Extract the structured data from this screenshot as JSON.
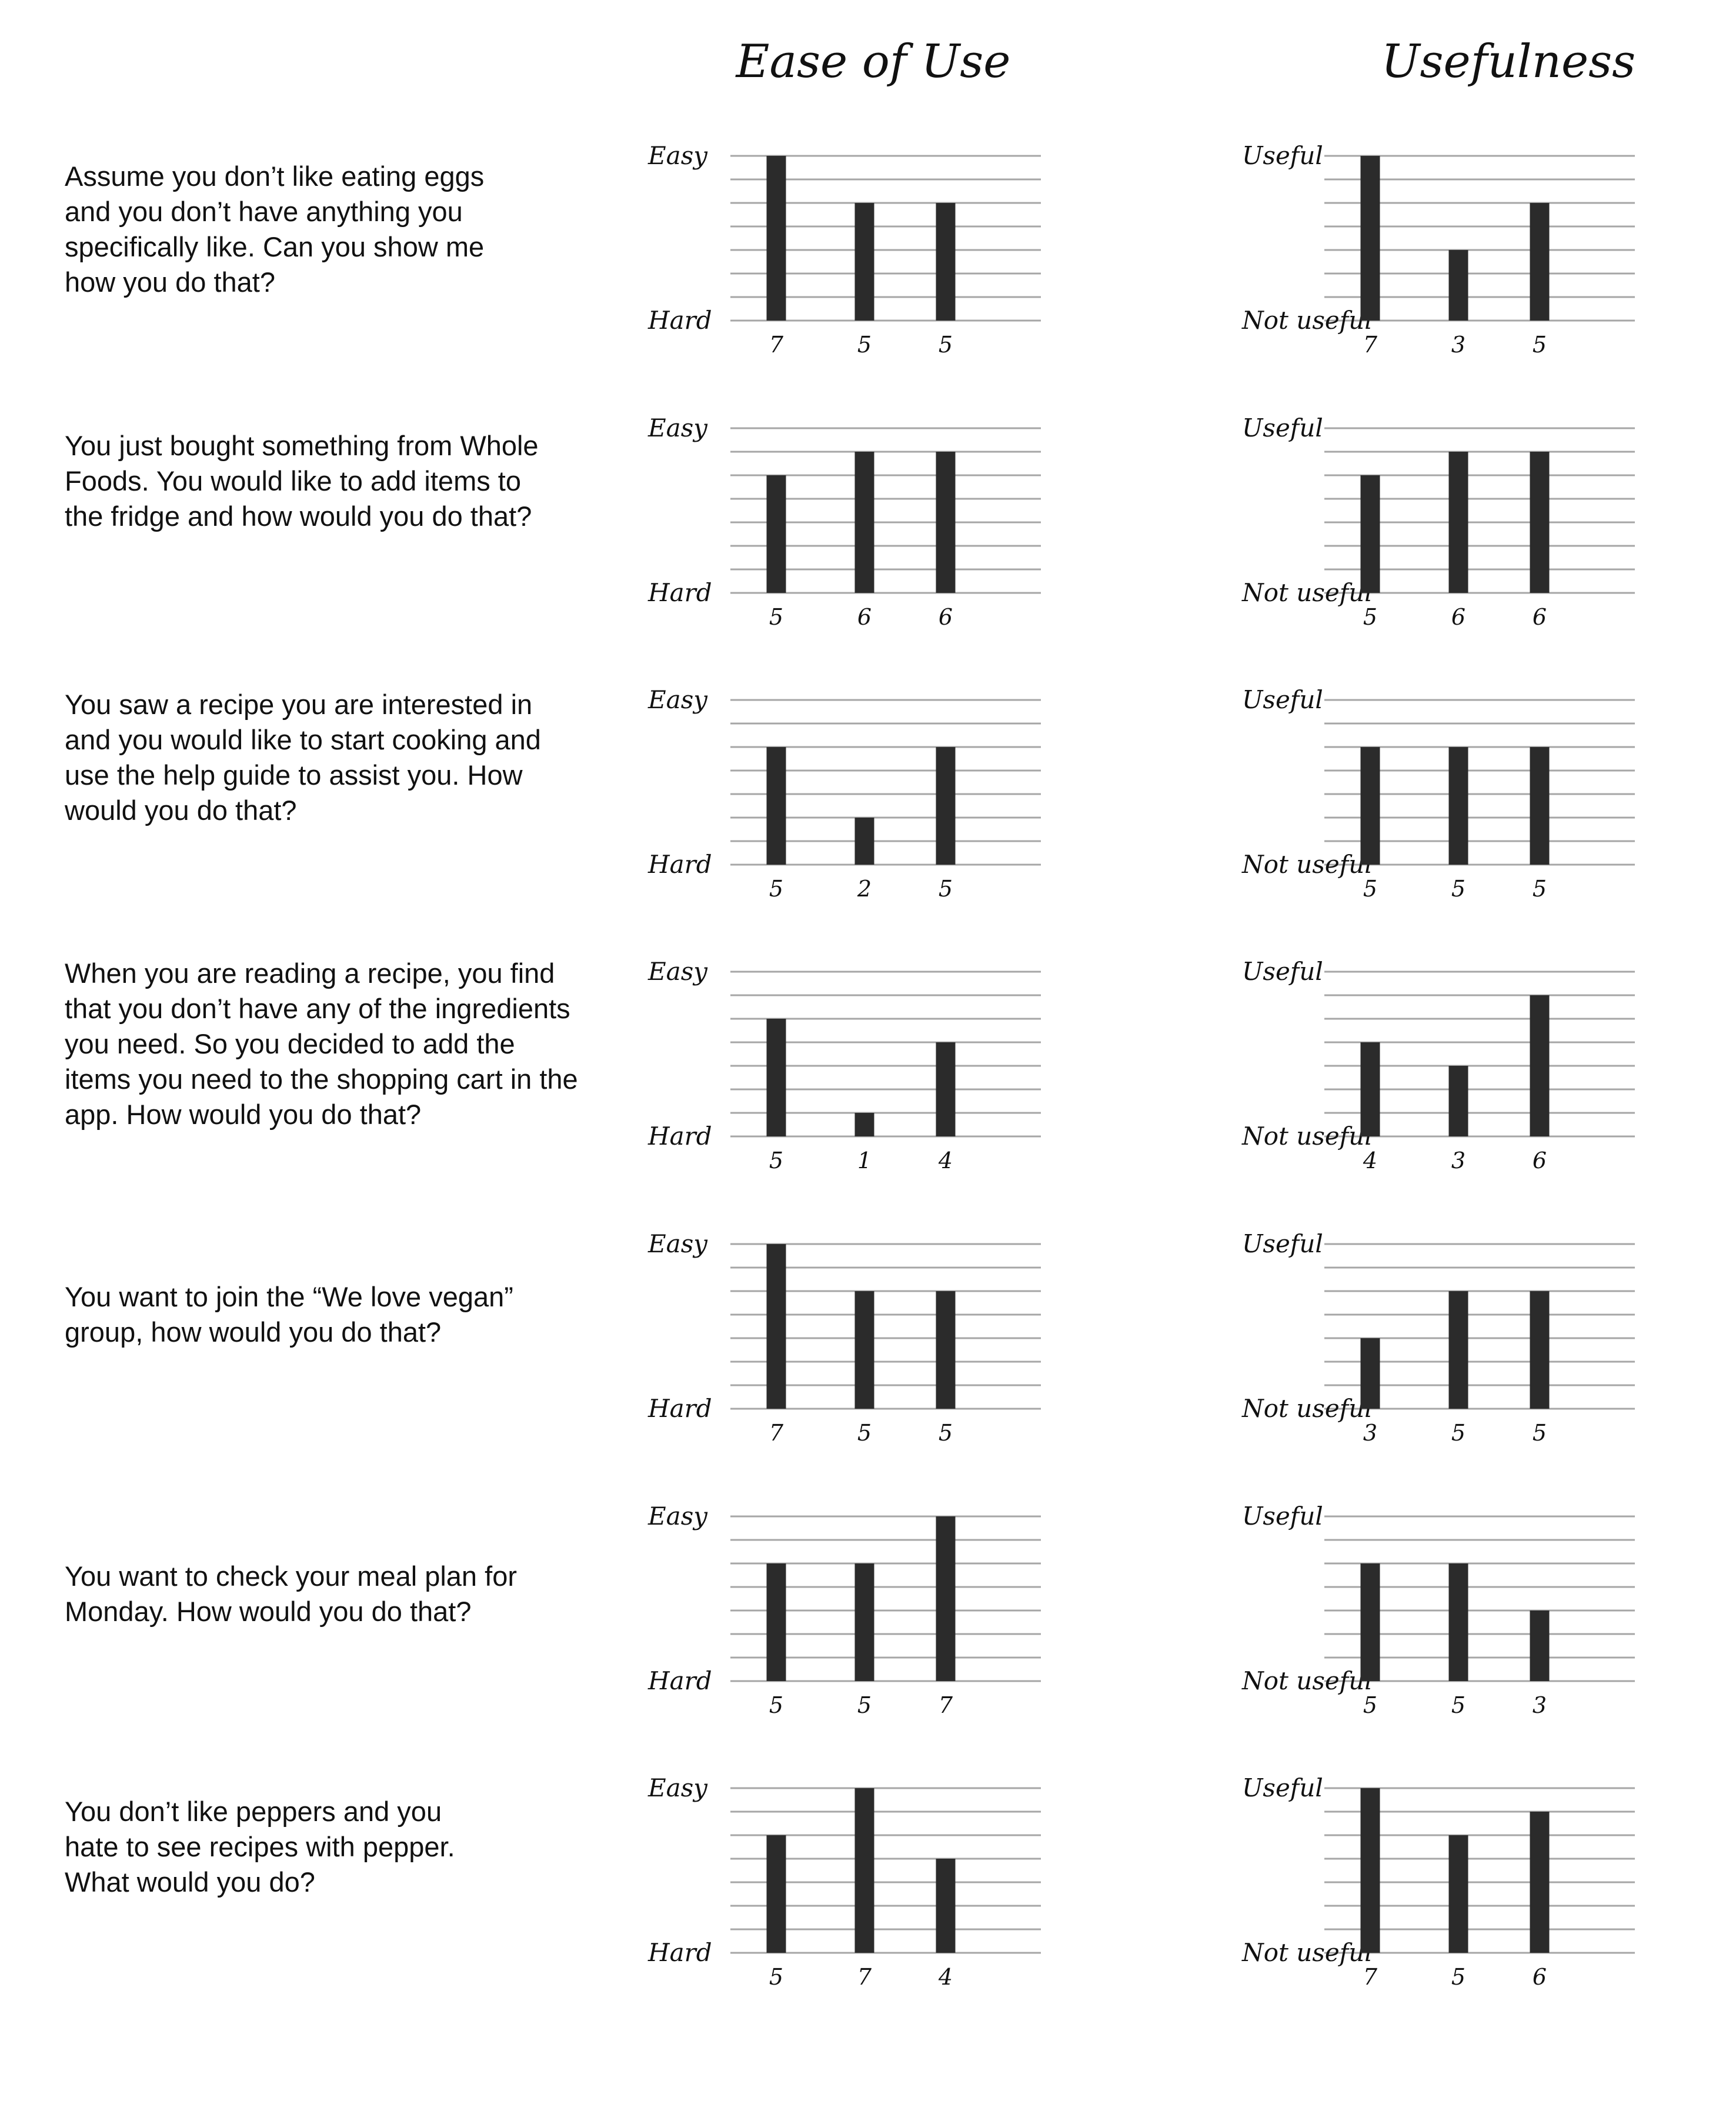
{
  "columns": {
    "ease": "Ease of Use",
    "usefulness": "Usefulness"
  },
  "tasks": [
    {
      "lines": [
        "Assume you don’t like eating eggs",
        "and you don’t have anything you",
        "specifically like. Can you show me",
        "how you do that?"
      ]
    },
    {
      "lines": [
        "You just bought something from Whole",
        "Foods. You would like to add items to",
        "the fridge and how would you do that?"
      ]
    },
    {
      "lines": [
        "You saw a recipe you are interested in",
        "and you would like to start cooking and",
        "use the help guide to assist you. How",
        "would you do that?"
      ]
    },
    {
      "lines": [
        "When you are reading a recipe, you find",
        "that you don’t have any of the ingredients",
        "you need. So you decided to add the",
        "items you need to the shopping cart in the",
        "app. How would you do that?"
      ]
    },
    {
      "lines": [
        "You want to join the “We love vegan”",
        "group, how would you do that?"
      ]
    },
    {
      "lines": [
        "You want to check your meal plan for",
        "Monday. How would you do that?"
      ]
    },
    {
      "lines": [
        "You don’t like peppers and you",
        "hate to see recipes with pepper.",
        "What would you do?"
      ]
    }
  ],
  "chart_data": [
    {
      "type": "bar",
      "values": [
        7,
        5,
        5
      ],
      "ylim": [
        0,
        7
      ],
      "top_label": "Easy",
      "bottom_label": "Hard"
    },
    {
      "type": "bar",
      "values": [
        7,
        3,
        5
      ],
      "ylim": [
        0,
        7
      ],
      "top_label": "Useful",
      "bottom_label": "Not useful"
    },
    {
      "type": "bar",
      "values": [
        5,
        6,
        6
      ],
      "ylim": [
        0,
        7
      ],
      "top_label": "Easy",
      "bottom_label": "Hard"
    },
    {
      "type": "bar",
      "values": [
        5,
        6,
        6
      ],
      "ylim": [
        0,
        7
      ],
      "top_label": "Useful",
      "bottom_label": "Not useful"
    },
    {
      "type": "bar",
      "values": [
        5,
        2,
        5
      ],
      "ylim": [
        0,
        7
      ],
      "top_label": "Easy",
      "bottom_label": "Hard"
    },
    {
      "type": "bar",
      "values": [
        5,
        5,
        5
      ],
      "ylim": [
        0,
        7
      ],
      "top_label": "Useful",
      "bottom_label": "Not useful"
    },
    {
      "type": "bar",
      "values": [
        5,
        1,
        4
      ],
      "ylim": [
        0,
        7
      ],
      "top_label": "Easy",
      "bottom_label": "Hard"
    },
    {
      "type": "bar",
      "values": [
        4,
        3,
        6
      ],
      "ylim": [
        0,
        7
      ],
      "top_label": "Useful",
      "bottom_label": "Not useful"
    },
    {
      "type": "bar",
      "values": [
        7,
        5,
        5
      ],
      "ylim": [
        0,
        7
      ],
      "top_label": "Easy",
      "bottom_label": "Hard"
    },
    {
      "type": "bar",
      "values": [
        3,
        5,
        5
      ],
      "ylim": [
        0,
        7
      ],
      "top_label": "Useful",
      "bottom_label": "Not useful"
    },
    {
      "type": "bar",
      "values": [
        5,
        5,
        7
      ],
      "ylim": [
        0,
        7
      ],
      "top_label": "Easy",
      "bottom_label": "Hard"
    },
    {
      "type": "bar",
      "values": [
        5,
        5,
        3
      ],
      "ylim": [
        0,
        7
      ],
      "top_label": "Useful",
      "bottom_label": "Not useful"
    },
    {
      "type": "bar",
      "values": [
        5,
        7,
        4
      ],
      "ylim": [
        0,
        7
      ],
      "top_label": "Easy",
      "bottom_label": "Hard"
    },
    {
      "type": "bar",
      "values": [
        7,
        5,
        6
      ],
      "ylim": [
        0,
        7
      ],
      "top_label": "Useful",
      "bottom_label": "Not useful"
    }
  ]
}
